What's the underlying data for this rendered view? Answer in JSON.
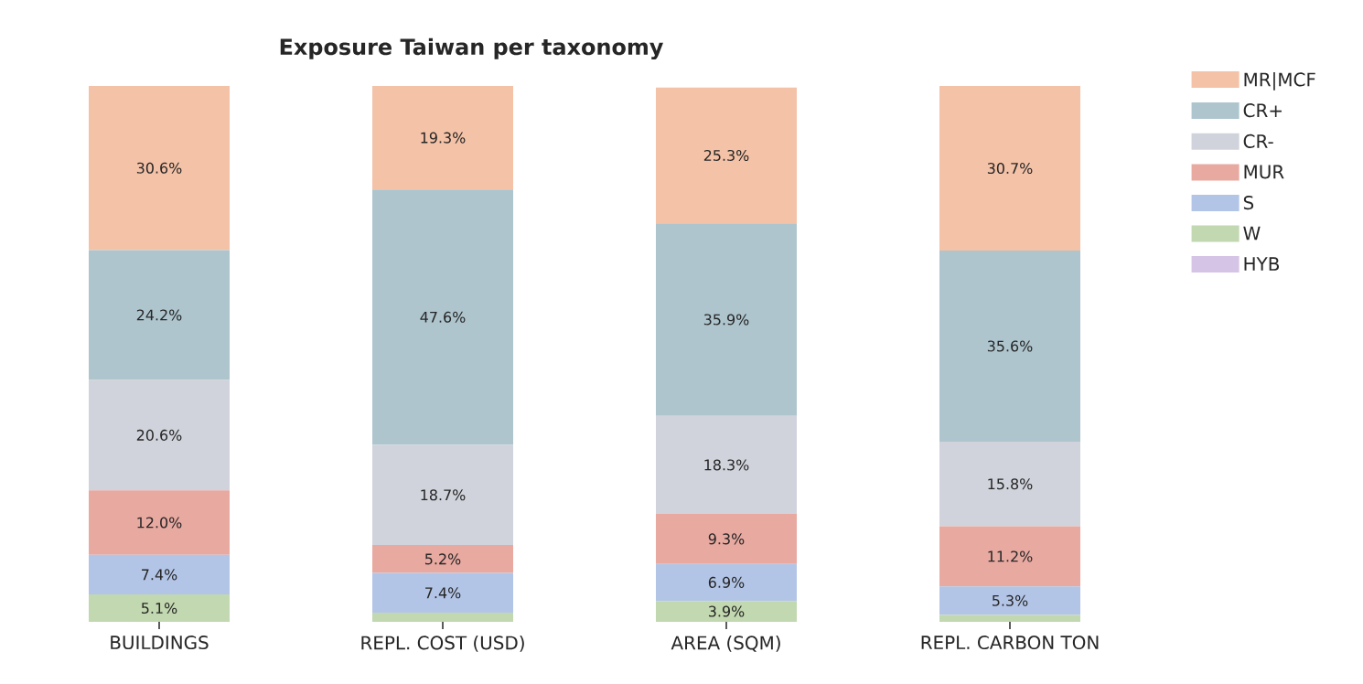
{
  "chart_data": {
    "type": "bar",
    "stacked": true,
    "title": "Exposure Taiwan per taxonomy",
    "categories": [
      "BUILDINGS",
      "REPL. COST (USD)",
      "AREA (SQM)",
      "REPL. CARBON TON"
    ],
    "tick_labels": "x",
    "legend": "top right",
    "grid": false,
    "series": [
      {
        "name": "HYB",
        "color": "#d6c4e6",
        "values": [
          null,
          null,
          null,
          null
        ],
        "value_labels": [
          null,
          null,
          null,
          null
        ]
      },
      {
        "name": "W",
        "color": "#c2d8b0",
        "values": [
          5.1,
          1.7,
          3.9,
          1.3
        ],
        "value_labels": [
          "5.1%",
          null,
          "3.9%",
          null
        ]
      },
      {
        "name": "S",
        "color": "#b3c5e7",
        "values": [
          7.4,
          7.4,
          6.9,
          5.3
        ],
        "value_labels": [
          "7.4%",
          "7.4%",
          "6.9%",
          "5.3%"
        ]
      },
      {
        "name": "MUR",
        "color": "#e8a9a1",
        "values": [
          12.0,
          5.2,
          9.3,
          11.2
        ],
        "value_labels": [
          "12.0%",
          "5.2%",
          "9.3%",
          "11.2%"
        ]
      },
      {
        "name": "CR-",
        "color": "#d0d3db",
        "values": [
          20.6,
          18.7,
          18.3,
          15.8
        ],
        "value_labels": [
          "20.6%",
          "18.7%",
          "18.3%",
          "15.8%"
        ]
      },
      {
        "name": "CR+",
        "color": "#aec5ce",
        "values": [
          24.2,
          47.6,
          35.9,
          35.6
        ],
        "value_labels": [
          "24.2%",
          "47.6%",
          "35.9%",
          "35.6%"
        ]
      },
      {
        "name": "MR|MCF",
        "color": "#f4c2a7",
        "values": [
          30.6,
          19.3,
          25.3,
          30.7
        ],
        "value_labels": [
          "30.6%",
          "19.3%",
          "25.3%",
          "30.7%"
        ]
      }
    ]
  }
}
